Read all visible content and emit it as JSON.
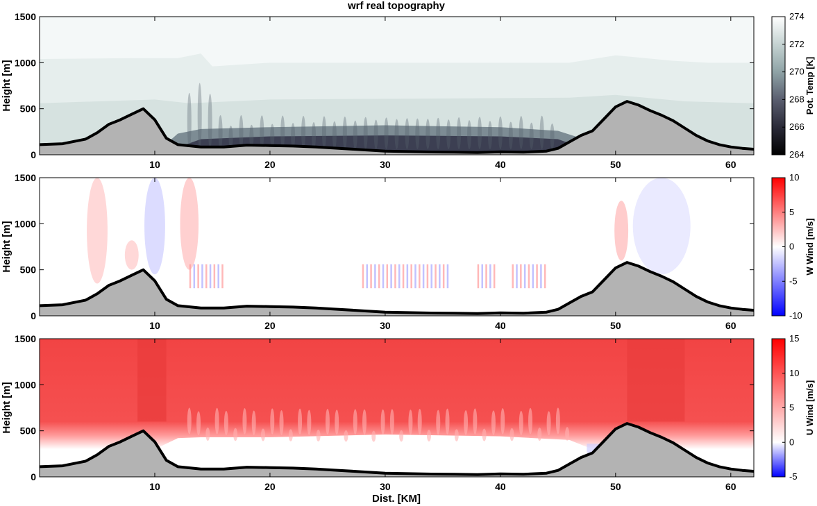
{
  "title": "wrf real topography",
  "chart_data": [
    {
      "type": "heatmap",
      "panel": "top",
      "title": "wrf real topography",
      "ylabel": "Height [m]",
      "xlabel": "",
      "xlim": [
        0,
        62
      ],
      "ylim": [
        0,
        1500
      ],
      "xticks": [
        10,
        20,
        30,
        40,
        50,
        60
      ],
      "yticks": [
        0,
        500,
        1000,
        1500
      ],
      "colorbar": {
        "label": "Pot. Temp [K]",
        "range": [
          264,
          274
        ],
        "ticks": [
          264,
          266,
          268,
          270,
          272,
          274
        ],
        "colormap": "bone"
      },
      "field_description": "Cold stable pool (~264-266 K) trapped in valley below ~300 m between ridges at 9 km and 51 km; warmer air (~272-274 K) aloft; wave-like plumes 13-45 km."
    },
    {
      "type": "heatmap",
      "panel": "middle",
      "ylabel": "Height [m]",
      "xlabel": "",
      "xlim": [
        0,
        62
      ],
      "ylim": [
        0,
        1500
      ],
      "xticks": [
        10,
        20,
        30,
        40,
        50,
        60
      ],
      "yticks": [
        0,
        500,
        1000,
        1500
      ],
      "colorbar": {
        "label": "W Wind [m/s]",
        "range": [
          -10,
          10
        ],
        "ticks": [
          -10,
          -5,
          0,
          5,
          10
        ],
        "colormap": "blue-white-red"
      },
      "field_description": "Mostly near-zero vertical velocity; weak alternating updraft/downdraft columns near 5, 10, 13, 50, 54 km; small-scale wave packets near 14, 28-35, 40-44 km."
    },
    {
      "type": "heatmap",
      "panel": "bottom",
      "ylabel": "Height [m]",
      "xlabel": "Dist. [KM]",
      "xlim": [
        0,
        62
      ],
      "ylim": [
        0,
        1500
      ],
      "xticks": [
        10,
        20,
        30,
        40,
        50,
        60
      ],
      "yticks": [
        0,
        500,
        1000,
        1500
      ],
      "colorbar": {
        "label": "U Wind [m/s]",
        "range": [
          -5,
          15
        ],
        "ticks": [
          -5,
          0,
          5,
          10,
          15
        ],
        "colormap": "blue-white-red"
      },
      "field_description": "Strong westerly flow (~10-14 m/s) above ~400 m; near-calm air trapped in valley below ~400 m between 10 and 48 km."
    }
  ],
  "terrain": {
    "x_km": [
      0,
      2,
      4,
      5,
      6,
      7,
      8,
      9,
      10,
      11,
      12,
      14,
      16,
      18,
      20,
      22,
      24,
      26,
      28,
      30,
      32,
      34,
      36,
      38,
      40,
      42,
      44,
      45,
      46,
      47,
      48,
      49,
      50,
      51,
      52,
      53,
      54,
      55,
      56,
      57,
      58,
      59,
      60,
      61,
      62
    ],
    "height_m": [
      110,
      120,
      170,
      240,
      330,
      380,
      440,
      500,
      380,
      180,
      110,
      85,
      85,
      105,
      100,
      95,
      85,
      70,
      55,
      40,
      35,
      30,
      28,
      25,
      32,
      28,
      40,
      70,
      140,
      210,
      260,
      390,
      520,
      580,
      540,
      480,
      430,
      370,
      290,
      210,
      150,
      110,
      85,
      70,
      60
    ],
    "fill_color": "#b3b3b3",
    "line_color": "#000000"
  }
}
